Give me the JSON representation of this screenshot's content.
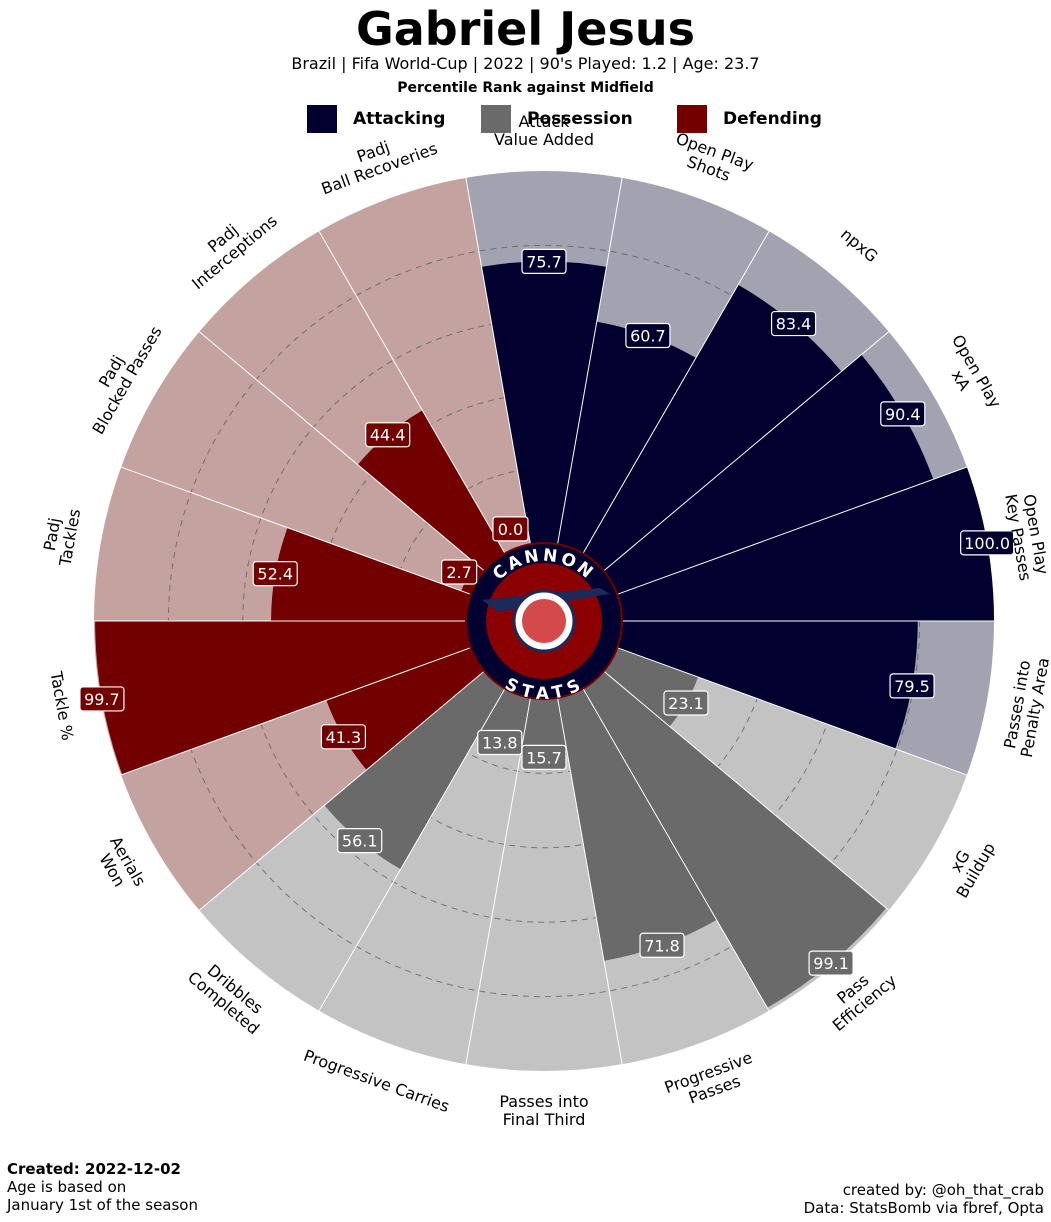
{
  "header": {
    "title": "Gabriel Jesus",
    "subtitle": "Brazil  | Fifa World-Cup | 2022 | 90's Played: 1.2 | Age: 23.7",
    "rank_note": "Percentile Rank against Midfield"
  },
  "legend": [
    {
      "label": "Attacking",
      "color": "#02002f"
    },
    {
      "label": "Possession",
      "color": "#6a6a6a"
    },
    {
      "label": "Defending",
      "color": "#720000"
    }
  ],
  "logo": {
    "top_text": "CANNON",
    "bottom_text": "STATS"
  },
  "chart_data": {
    "type": "polar-bar",
    "range": [
      0,
      100
    ],
    "grid": "dashed rings",
    "categories": [
      {
        "label": "Open Play\nKey Passes",
        "value": 100.0,
        "group": "Attacking"
      },
      {
        "label": "Open Play\nxA",
        "value": 90.4,
        "group": "Attacking"
      },
      {
        "label": "npxG",
        "value": 83.4,
        "group": "Attacking"
      },
      {
        "label": "Open Play\nShots",
        "value": 60.7,
        "group": "Attacking"
      },
      {
        "label": "Attack\nValue Added",
        "value": 75.7,
        "group": "Attacking"
      },
      {
        "label": "Padj\nBall Recoveries",
        "value": 0.0,
        "group": "Defending"
      },
      {
        "label": "Padj\nInterceptions",
        "value": 44.4,
        "group": "Defending"
      },
      {
        "label": "Padj\nBlocked Passes",
        "value": 2.7,
        "group": "Defending"
      },
      {
        "label": "Padj\nTackles",
        "value": 52.4,
        "group": "Defending"
      },
      {
        "label": "Tackle %",
        "value": 99.7,
        "group": "Defending"
      },
      {
        "label": "Aerials\nWon",
        "value": 41.3,
        "group": "Defending"
      },
      {
        "label": "Dribbles\nCompleted",
        "value": 56.1,
        "group": "Possession"
      },
      {
        "label": "Progressive Carries",
        "value": 13.8,
        "group": "Possession"
      },
      {
        "label": "Passes into\nFinal Third",
        "value": 15.7,
        "group": "Possession"
      },
      {
        "label": "Progressive\nPasses",
        "value": 71.8,
        "group": "Possession"
      },
      {
        "label": "Pass\nEfficiency",
        "value": 99.1,
        "group": "Possession"
      },
      {
        "label": "xG\nBuildup",
        "value": 23.1,
        "group": "Possession"
      },
      {
        "label": "Passes into\nPenalty Area",
        "value": 79.5,
        "group": "Attacking"
      }
    ],
    "value_labels": [
      "100.0",
      "90.4",
      "83.4",
      "60.7",
      "75.7",
      "0.0",
      "44.4",
      "2.7",
      "52.4",
      "99.7",
      "41.3",
      "56.1",
      "13.8",
      "15.7",
      "71.8",
      "99.1",
      "23.1",
      "79.5"
    ],
    "colors": {
      "Attacking": {
        "bar": "#02002f",
        "bg": "#a3a2b1"
      },
      "Possession": {
        "bar": "#6a6a6a",
        "bg": "#c3c3c3"
      },
      "Defending": {
        "bar": "#720000",
        "bg": "#c4a2a0"
      }
    }
  },
  "footer": {
    "created": "Created: 2022-12-02",
    "age_note_1": "Age is based on",
    "age_note_2": "January 1st of the season",
    "credit": "created by: @oh_that_crab",
    "source": "Data: StatsBomb via fbref, Opta"
  }
}
